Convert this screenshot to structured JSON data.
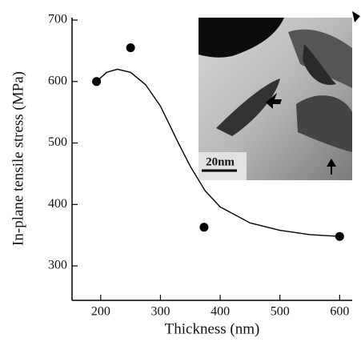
{
  "chart_data": {
    "type": "scatter",
    "xlabel": "Thickness (nm)",
    "ylabel": "In-plane tensile stress (MPa)",
    "xlim": [
      152,
      621
    ],
    "ylim": [
      244,
      704
    ],
    "xticks": [
      200,
      300,
      400,
      500,
      600
    ],
    "yticks": [
      300,
      400,
      500,
      600,
      700
    ],
    "inset_label": "20nm",
    "series": [
      {
        "type": "scatter",
        "color": "#000000",
        "x": [
          193,
          250,
          373,
          600
        ],
        "values": [
          600,
          655,
          363,
          348
        ]
      },
      {
        "type": "line",
        "color": "#000000",
        "x": [
          193,
          210,
          228,
          250,
          275,
          300,
          330,
          350,
          375,
          400,
          450,
          500,
          550,
          600
        ],
        "values": [
          600,
          615,
          620,
          615,
          595,
          560,
          500,
          462,
          422,
          396,
          370,
          358,
          351,
          348
        ]
      }
    ]
  }
}
